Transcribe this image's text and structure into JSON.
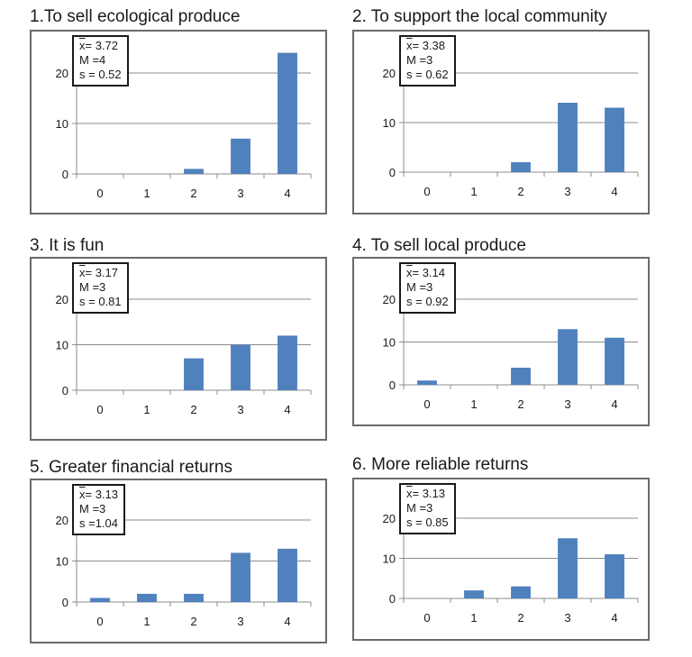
{
  "chart_data": [
    {
      "type": "bar",
      "title": "1.To sell ecological produce",
      "categories": [
        "0",
        "1",
        "2",
        "3",
        "4"
      ],
      "values": [
        0,
        0,
        1,
        7,
        24
      ],
      "yticks": [
        "0",
        "10",
        "20"
      ],
      "ylim": [
        0,
        25
      ],
      "grid": true,
      "stats": {
        "mean_symbol": "x",
        "mean": "= 3.72",
        "median": "M =4",
        "sd": "s = 0.52"
      }
    },
    {
      "type": "bar",
      "title": "2.  To support the local community",
      "categories": [
        "0",
        "1",
        "2",
        "3",
        "4"
      ],
      "values": [
        0,
        0,
        2,
        14,
        13
      ],
      "yticks": [
        "0",
        "10",
        "20"
      ],
      "ylim": [
        0,
        25
      ],
      "grid": true,
      "stats": {
        "mean_symbol": "x",
        "mean": "= 3.38",
        "median": "M =3",
        "sd": "s = 0.62"
      }
    },
    {
      "type": "bar",
      "title": "3. It is fun",
      "categories": [
        "0",
        "1",
        "2",
        "3",
        "4"
      ],
      "values": [
        0,
        0,
        7,
        10,
        12
      ],
      "yticks": [
        "0",
        "10",
        "20"
      ],
      "ylim": [
        0,
        25
      ],
      "grid": true,
      "stats": {
        "mean_symbol": "x",
        "mean": "= 3.17",
        "median": "M =3",
        "sd": "s = 0.81"
      }
    },
    {
      "type": "bar",
      "title": "4.  To sell local produce",
      "categories": [
        "0",
        "1",
        "2",
        "3",
        "4"
      ],
      "values": [
        1,
        0,
        4,
        13,
        11
      ],
      "yticks": [
        "0",
        "10",
        "20"
      ],
      "ylim": [
        0,
        25
      ],
      "grid": true,
      "stats": {
        "mean_symbol": "x",
        "mean": "= 3.14",
        "median": "M =3",
        "sd": "s = 0.92"
      }
    },
    {
      "type": "bar",
      "title": "5. Greater financial returns",
      "categories": [
        "0",
        "1",
        "2",
        "3",
        "4"
      ],
      "values": [
        1,
        2,
        2,
        12,
        13
      ],
      "yticks": [
        "0",
        "10",
        "20"
      ],
      "ylim": [
        0,
        25
      ],
      "grid": true,
      "stats": {
        "mean_symbol": "x",
        "mean": "= 3.13",
        "median": "M =3",
        "sd": "s =1.04"
      }
    },
    {
      "type": "bar",
      "title": "6.  More reliable returns",
      "categories": [
        "0",
        "1",
        "2",
        "3",
        "4"
      ],
      "values": [
        0,
        2,
        3,
        15,
        11
      ],
      "yticks": [
        "0",
        "10",
        "20"
      ],
      "ylim": [
        0,
        25
      ],
      "grid": true,
      "stats": {
        "mean_symbol": "x",
        "mean": "= 3.13",
        "median": "M =3",
        "sd": "s = 0.85"
      }
    }
  ],
  "colors": {
    "bar": "#4f81bd",
    "grid": "#8c8c8c",
    "axis": "#8c8c8c",
    "frame": "#6a6a6a"
  }
}
